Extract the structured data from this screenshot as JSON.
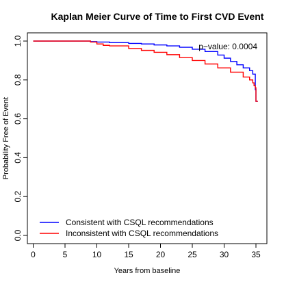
{
  "chart_data": {
    "type": "line",
    "title": "Kaplan Meier Curve of Time to First CVD Event",
    "xlabel": "Years from baseline",
    "ylabel": "Probability Free of Event",
    "xlim": [
      0,
      35.5
    ],
    "ylim": [
      0,
      1.02
    ],
    "xticks": [
      "0",
      "5",
      "10",
      "15",
      "20",
      "25",
      "30",
      "35"
    ],
    "yticks": [
      "0.0",
      "0.2",
      "0.4",
      "0.6",
      "0.8",
      "1.0"
    ],
    "grid": false,
    "legend_position": "bottom-left",
    "annotation": "p−value: 0.0004",
    "series": [
      {
        "name": "Consistent with CSQL recommendations",
        "color": "#0000ff",
        "x": [
          0,
          8,
          9,
          10,
          12,
          15,
          17,
          19,
          21,
          23,
          25,
          27,
          29,
          30,
          31,
          32,
          33,
          34,
          34.5,
          34.8,
          34.9,
          35.0,
          35.3
        ],
        "y": [
          1.0,
          1.0,
          0.997,
          0.995,
          0.992,
          0.988,
          0.985,
          0.98,
          0.975,
          0.968,
          0.958,
          0.946,
          0.928,
          0.912,
          0.895,
          0.878,
          0.862,
          0.848,
          0.83,
          0.83,
          0.75,
          0.69,
          0.69
        ]
      },
      {
        "name": "Inconsistent with CSQL recommendations",
        "color": "#ff0000",
        "x": [
          0,
          8,
          9,
          10,
          11,
          12,
          15,
          17,
          19,
          21,
          23,
          25,
          27,
          29,
          31,
          33,
          34,
          34.5,
          34.7,
          34.9,
          35.0,
          35.3
        ],
        "y": [
          1.0,
          1.0,
          0.995,
          0.985,
          0.978,
          0.975,
          0.962,
          0.952,
          0.942,
          0.93,
          0.915,
          0.9,
          0.882,
          0.862,
          0.84,
          0.815,
          0.8,
          0.785,
          0.77,
          0.76,
          0.69,
          0.69
        ]
      }
    ]
  }
}
